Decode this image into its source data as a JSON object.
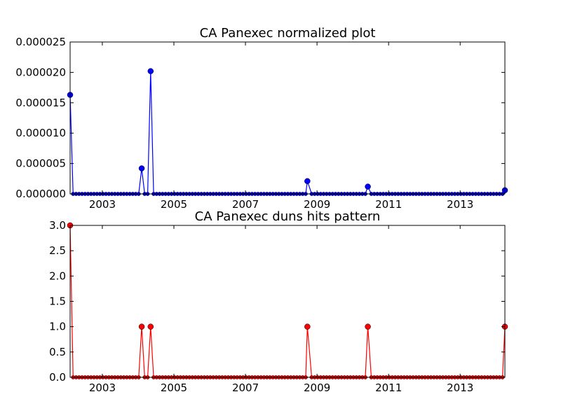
{
  "figure": {
    "background": "#ffffff"
  },
  "chart_data": [
    {
      "type": "line",
      "title": "CA Panexec normalized plot",
      "xlabel": "",
      "ylabel": "",
      "x_tick_labels": [
        "2003",
        "2005",
        "2007",
        "2009",
        "2011",
        "2013"
      ],
      "x_tick_values": [
        2003,
        2005,
        2007,
        2009,
        2011,
        2013
      ],
      "y_tick_labels": [
        "0.000000",
        "0.000005",
        "0.000010",
        "0.000015",
        "0.000020",
        "0.000025"
      ],
      "y_tick_values": [
        0,
        5e-06,
        1e-05,
        1.5e-05,
        2e-05,
        2.5e-05
      ],
      "xlim": [
        2002.1,
        2014.25
      ],
      "ylim": [
        0,
        2.5e-05
      ],
      "grid": false,
      "legend": "none",
      "color": "#0000ff",
      "marker": "circle",
      "x_start": 2002.1,
      "x_step": 0.0833333333,
      "n_points": 147,
      "nonzero_points": [
        {
          "x": 2002.1,
          "y": 1.63e-05
        },
        {
          "x": 2004.1,
          "y": 4.2e-06
        },
        {
          "x": 2004.35,
          "y": 2.02e-05
        },
        {
          "x": 2008.73,
          "y": 2.1e-06
        },
        {
          "x": 2010.42,
          "y": 1.2e-06
        },
        {
          "x": 2014.25,
          "y": 6e-07
        }
      ]
    },
    {
      "type": "line",
      "title": "CA Panexec duns hits pattern",
      "xlabel": "",
      "ylabel": "",
      "x_tick_labels": [
        "2003",
        "2005",
        "2007",
        "2009",
        "2011",
        "2013"
      ],
      "x_tick_values": [
        2003,
        2005,
        2007,
        2009,
        2011,
        2013
      ],
      "y_tick_labels": [
        "0.0",
        "0.5",
        "1.0",
        "1.5",
        "2.0",
        "2.5",
        "3.0"
      ],
      "y_tick_values": [
        0,
        0.5,
        1,
        1.5,
        2,
        2.5,
        3
      ],
      "xlim": [
        2002.1,
        2014.25
      ],
      "ylim": [
        0,
        3
      ],
      "grid": false,
      "legend": "none",
      "color": "#ff0000",
      "marker": "circle",
      "x_start": 2002.1,
      "x_step": 0.0833333333,
      "n_points": 147,
      "nonzero_points": [
        {
          "x": 2002.1,
          "y": 3
        },
        {
          "x": 2004.1,
          "y": 1
        },
        {
          "x": 2004.35,
          "y": 1
        },
        {
          "x": 2008.73,
          "y": 1
        },
        {
          "x": 2010.42,
          "y": 1
        },
        {
          "x": 2014.25,
          "y": 1
        }
      ]
    }
  ]
}
